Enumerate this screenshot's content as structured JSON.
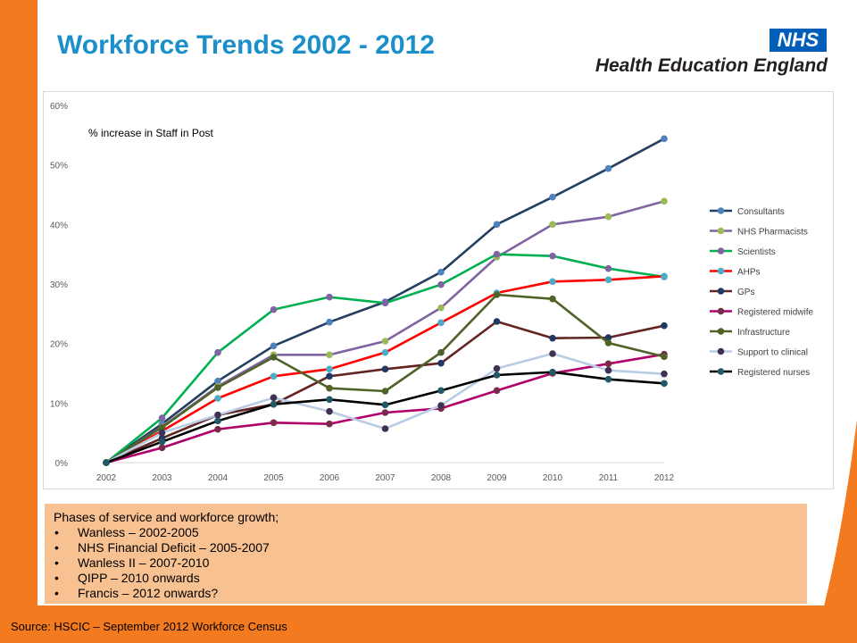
{
  "slide": {
    "title": "Workforce Trends 2002 - 2012",
    "logo_badge": "NHS",
    "org_name": "Health Education England",
    "source": "Source: HSCIC – September 2012 Workforce Census"
  },
  "colors": {
    "title": "#1a8fc9",
    "orange": "#f47a20",
    "nhs_blue": "#005eb8",
    "phases_bg": "#f8c192"
  },
  "phases": {
    "heading": "Phases of service and workforce growth;",
    "items": [
      "Wanless  – 2002-2005",
      "NHS Financial Deficit – 2005-2007",
      "Wanless  II – 2007-2010",
      "QIPP  – 2010  onwards",
      "Francis – 2012 onwards?"
    ]
  },
  "chart_data": {
    "type": "line",
    "annotation": "% increase in Staff in Post",
    "xlabel": "",
    "ylabel": "",
    "categories": [
      "2002",
      "2003",
      "2004",
      "2005",
      "2006",
      "2007",
      "2008",
      "2009",
      "2010",
      "2011",
      "2012"
    ],
    "ylim": [
      0,
      60
    ],
    "yticks": [
      0,
      10,
      20,
      30,
      40,
      50,
      60
    ],
    "ytick_labels": [
      "0%",
      "10%",
      "20%",
      "30%",
      "40%",
      "50%",
      "60%"
    ],
    "grid": false,
    "legend_position": "right",
    "series": [
      {
        "name": "Consultants",
        "line_color": "#243f60",
        "marker_color": "#4f81bd",
        "values": [
          0,
          6.5,
          13.7,
          19.6,
          23.6,
          27.0,
          32.0,
          40.0,
          44.6,
          49.4,
          54.4
        ]
      },
      {
        "name": "NHS Pharmacists",
        "line_color": "#8064a2",
        "marker_color": "#9bbb59",
        "values": [
          0,
          6.0,
          12.8,
          18.1,
          18.1,
          20.4,
          26.0,
          34.5,
          40.0,
          41.3,
          43.9
        ]
      },
      {
        "name": "Scientists",
        "line_color": "#00b050",
        "marker_color": "#8064a2",
        "values": [
          0,
          7.5,
          18.5,
          25.7,
          27.8,
          26.8,
          29.9,
          35.0,
          34.7,
          32.6,
          31.2
        ]
      },
      {
        "name": "AHPs",
        "line_color": "#ff0000",
        "marker_color": "#4bacc6",
        "values": [
          0,
          5.3,
          10.8,
          14.5,
          15.7,
          18.5,
          23.5,
          28.5,
          30.4,
          30.7,
          31.3
        ]
      },
      {
        "name": "GPs",
        "line_color": "#632523",
        "marker_color": "#1f3864",
        "values": [
          0,
          4.1,
          8.0,
          9.8,
          14.5,
          15.7,
          16.7,
          23.7,
          20.9,
          21.0,
          23.0
        ]
      },
      {
        "name": "Registered midwife",
        "line_color": "#b1006b",
        "marker_color": "#772c4c",
        "values": [
          0,
          2.5,
          5.6,
          6.7,
          6.5,
          8.4,
          9.1,
          12.1,
          15.0,
          16.6,
          18.2
        ]
      },
      {
        "name": "Infrastructure",
        "line_color": "#4f6228",
        "marker_color": "#4f6228",
        "values": [
          0,
          5.9,
          12.6,
          17.7,
          12.5,
          12.0,
          18.5,
          28.2,
          27.5,
          20.1,
          17.8
        ]
      },
      {
        "name": "Support to clinical",
        "line_color": "#b8cce4",
        "marker_color": "#3f3151",
        "values": [
          0,
          5.0,
          8.0,
          10.9,
          8.6,
          5.7,
          9.6,
          15.8,
          18.3,
          15.5,
          14.9
        ]
      },
      {
        "name": "Registered nurses",
        "line_color": "#000000",
        "marker_color": "#215967",
        "values": [
          0,
          3.5,
          7.0,
          9.8,
          10.6,
          9.7,
          12.1,
          14.7,
          15.2,
          14.0,
          13.3
        ]
      }
    ]
  }
}
